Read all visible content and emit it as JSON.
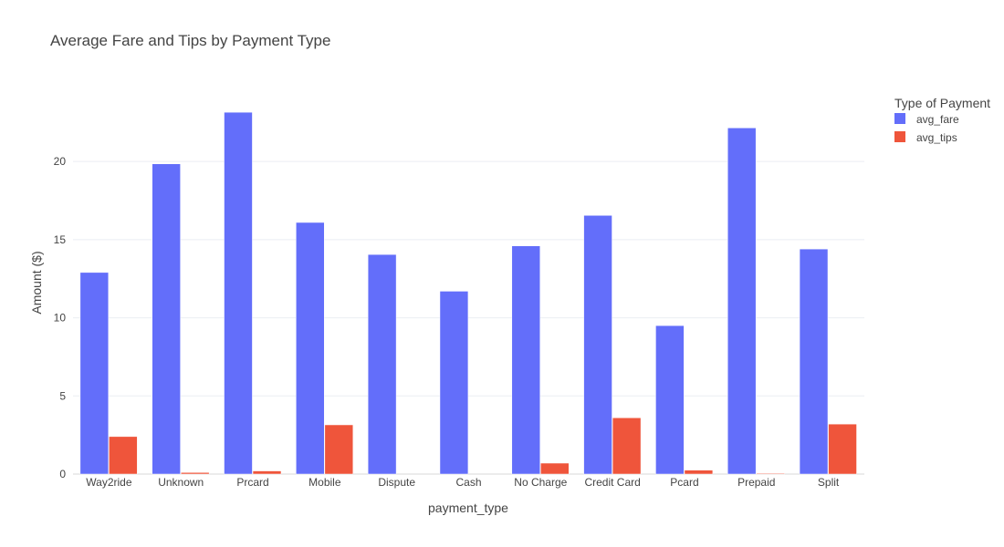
{
  "chart_data": {
    "type": "bar",
    "title": "Average Fare and Tips by Payment Type",
    "xlabel": "payment_type",
    "ylabel": "Amount ($)",
    "ylim": [
      0,
      24.5
    ],
    "yticks": [
      0,
      5,
      10,
      15,
      20
    ],
    "grid": true,
    "legend": {
      "title": "Type of Payment",
      "placement": "top-right"
    },
    "categories": [
      "Way2ride",
      "Unknown",
      "Prcard",
      "Mobile",
      "Dispute",
      "Cash",
      "No Charge",
      "Credit Card",
      "Pcard",
      "Prepaid",
      "Split"
    ],
    "series": [
      {
        "name": "avg_fare",
        "color": "#636efa",
        "values": [
          12.9,
          19.85,
          23.15,
          16.1,
          14.05,
          11.7,
          14.6,
          16.55,
          9.5,
          22.15,
          14.4
        ]
      },
      {
        "name": "avg_tips",
        "color": "#ef553b",
        "values": [
          2.4,
          0.1,
          0.2,
          3.15,
          0.0,
          0.0,
          0.7,
          3.6,
          0.25,
          0.05,
          3.2
        ]
      }
    ]
  }
}
